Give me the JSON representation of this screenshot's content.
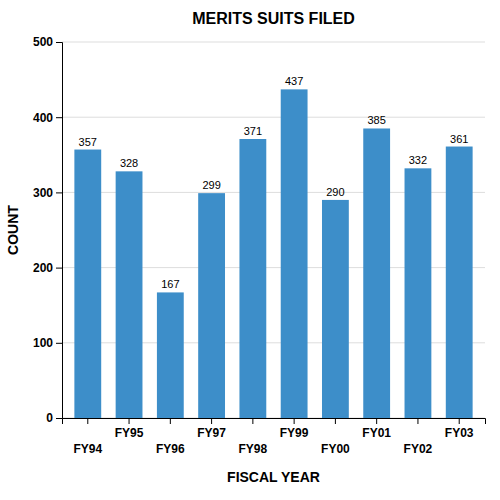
{
  "chart_data": {
    "type": "bar",
    "title": "MERITS SUITS FILED",
    "categories": [
      "FY94",
      "FY95",
      "FY96",
      "FY97",
      "FY98",
      "FY99",
      "FY00",
      "FY01",
      "FY02",
      "FY03"
    ],
    "values": [
      357,
      328,
      167,
      299,
      371,
      437,
      290,
      385,
      332,
      361
    ],
    "color": "#3d8ec9",
    "xlabel": "FISCAL YEAR",
    "ylabel": "COUNT",
    "ylim": [
      0,
      500
    ],
    "yticks": [
      0,
      100,
      200,
      300,
      400,
      500
    ],
    "grid": true,
    "data_labels": true
  }
}
